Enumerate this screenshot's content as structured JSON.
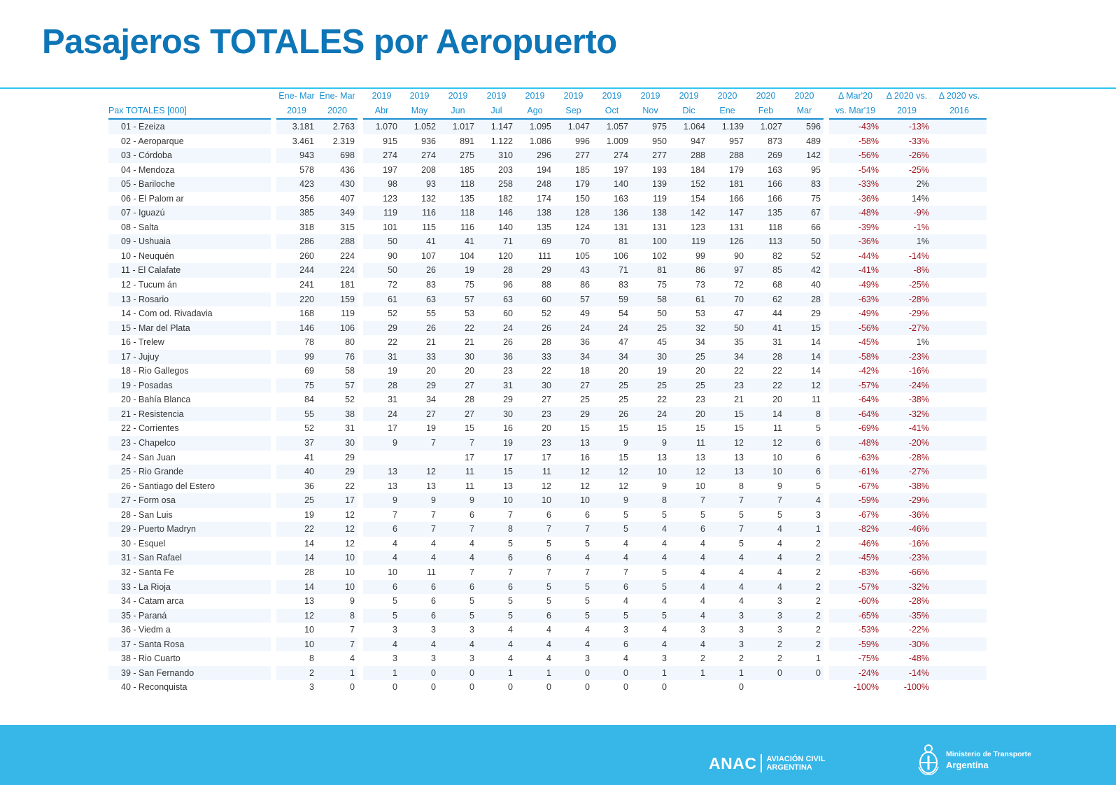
{
  "title": "Pasajeros TOTALES por Aeropuerto",
  "table": {
    "label_header": "Pax TOTALES [000]",
    "col_top": [
      "Ene- Mar",
      "Ene- Mar",
      "2019",
      "2019",
      "2019",
      "2019",
      "2019",
      "2019",
      "2019",
      "2019",
      "2019",
      "2020",
      "2020",
      "2020",
      "Δ Mar'20",
      "Δ 2020 vs.",
      "Δ 2020 vs."
    ],
    "col_bottom": [
      "2019",
      "2020",
      "Abr",
      "May",
      "Jun",
      "Jul",
      "Ago",
      "Sep",
      "Oct",
      "Nov",
      "Dic",
      "Ene",
      "Feb",
      "Mar",
      "vs. Mar'19",
      "2019",
      "2016"
    ],
    "rows": [
      [
        "01 - Ezeiza",
        "3.181",
        "2.763",
        "1.070",
        "1.052",
        "1.017",
        "1.147",
        "1.095",
        "1.047",
        "1.057",
        "975",
        "1.064",
        "1.139",
        "1.027",
        "596",
        "-43%",
        "-13%",
        ""
      ],
      [
        "02 - Aeroparque",
        "3.461",
        "2.319",
        "915",
        "936",
        "891",
        "1.122",
        "1.086",
        "996",
        "1.009",
        "950",
        "947",
        "957",
        "873",
        "489",
        "-58%",
        "-33%",
        ""
      ],
      [
        "03 - Córdoba",
        "943",
        "698",
        "274",
        "274",
        "275",
        "310",
        "296",
        "277",
        "274",
        "277",
        "288",
        "288",
        "269",
        "142",
        "-56%",
        "-26%",
        ""
      ],
      [
        "04 - Mendoza",
        "578",
        "436",
        "197",
        "208",
        "185",
        "203",
        "194",
        "185",
        "197",
        "193",
        "184",
        "179",
        "163",
        "95",
        "-54%",
        "-25%",
        ""
      ],
      [
        "05 - Bariloche",
        "423",
        "430",
        "98",
        "93",
        "118",
        "258",
        "248",
        "179",
        "140",
        "139",
        "152",
        "181",
        "166",
        "83",
        "-33%",
        "2%",
        ""
      ],
      [
        "06 - El Palom ar",
        "356",
        "407",
        "123",
        "132",
        "135",
        "182",
        "174",
        "150",
        "163",
        "119",
        "154",
        "166",
        "166",
        "75",
        "-36%",
        "14%",
        ""
      ],
      [
        "07 - Iguazú",
        "385",
        "349",
        "119",
        "116",
        "118",
        "146",
        "138",
        "128",
        "136",
        "138",
        "142",
        "147",
        "135",
        "67",
        "-48%",
        "-9%",
        ""
      ],
      [
        "08 - Salta",
        "318",
        "315",
        "101",
        "115",
        "116",
        "140",
        "135",
        "124",
        "131",
        "131",
        "123",
        "131",
        "118",
        "66",
        "-39%",
        "-1%",
        ""
      ],
      [
        "09 - Ushuaia",
        "286",
        "288",
        "50",
        "41",
        "41",
        "71",
        "69",
        "70",
        "81",
        "100",
        "119",
        "126",
        "113",
        "50",
        "-36%",
        "1%",
        ""
      ],
      [
        "10 - Neuquén",
        "260",
        "224",
        "90",
        "107",
        "104",
        "120",
        "111",
        "105",
        "106",
        "102",
        "99",
        "90",
        "82",
        "52",
        "-44%",
        "-14%",
        ""
      ],
      [
        "11 - El Calafate",
        "244",
        "224",
        "50",
        "26",
        "19",
        "28",
        "29",
        "43",
        "71",
        "81",
        "86",
        "97",
        "85",
        "42",
        "-41%",
        "-8%",
        ""
      ],
      [
        "12 - Tucum án",
        "241",
        "181",
        "72",
        "83",
        "75",
        "96",
        "88",
        "86",
        "83",
        "75",
        "73",
        "72",
        "68",
        "40",
        "-49%",
        "-25%",
        ""
      ],
      [
        "13 - Rosario",
        "220",
        "159",
        "61",
        "63",
        "57",
        "63",
        "60",
        "57",
        "59",
        "58",
        "61",
        "70",
        "62",
        "28",
        "-63%",
        "-28%",
        ""
      ],
      [
        "14 - Com od. Rivadavia",
        "168",
        "119",
        "52",
        "55",
        "53",
        "60",
        "52",
        "49",
        "54",
        "50",
        "53",
        "47",
        "44",
        "29",
        "-49%",
        "-29%",
        ""
      ],
      [
        "15 - Mar del Plata",
        "146",
        "106",
        "29",
        "26",
        "22",
        "24",
        "26",
        "24",
        "24",
        "25",
        "32",
        "50",
        "41",
        "15",
        "-56%",
        "-27%",
        ""
      ],
      [
        "16 - Trelew",
        "78",
        "80",
        "22",
        "21",
        "21",
        "26",
        "28",
        "36",
        "47",
        "45",
        "34",
        "35",
        "31",
        "14",
        "-45%",
        "1%",
        ""
      ],
      [
        "17 - Jujuy",
        "99",
        "76",
        "31",
        "33",
        "30",
        "36",
        "33",
        "34",
        "34",
        "30",
        "25",
        "34",
        "28",
        "14",
        "-58%",
        "-23%",
        ""
      ],
      [
        "18 - Rio Gallegos",
        "69",
        "58",
        "19",
        "20",
        "20",
        "23",
        "22",
        "18",
        "20",
        "19",
        "20",
        "22",
        "22",
        "14",
        "-42%",
        "-16%",
        ""
      ],
      [
        "19 - Posadas",
        "75",
        "57",
        "28",
        "29",
        "27",
        "31",
        "30",
        "27",
        "25",
        "25",
        "25",
        "23",
        "22",
        "12",
        "-57%",
        "-24%",
        ""
      ],
      [
        "20 - Bahía Blanca",
        "84",
        "52",
        "31",
        "34",
        "28",
        "29",
        "27",
        "25",
        "25",
        "22",
        "23",
        "21",
        "20",
        "11",
        "-64%",
        "-38%",
        ""
      ],
      [
        "21 - Resistencia",
        "55",
        "38",
        "24",
        "27",
        "27",
        "30",
        "23",
        "29",
        "26",
        "24",
        "20",
        "15",
        "14",
        "8",
        "-64%",
        "-32%",
        ""
      ],
      [
        "22 - Corrientes",
        "52",
        "31",
        "17",
        "19",
        "15",
        "16",
        "20",
        "15",
        "15",
        "15",
        "15",
        "15",
        "11",
        "5",
        "-69%",
        "-41%",
        ""
      ],
      [
        "23 - Chapelco",
        "37",
        "30",
        "9",
        "7",
        "7",
        "19",
        "23",
        "13",
        "9",
        "9",
        "11",
        "12",
        "12",
        "6",
        "-48%",
        "-20%",
        ""
      ],
      [
        "24 - San Juan",
        "41",
        "29",
        "",
        "",
        "17",
        "17",
        "17",
        "16",
        "15",
        "13",
        "13",
        "13",
        "10",
        "6",
        "-63%",
        "-28%",
        ""
      ],
      [
        "25 - Rio Grande",
        "40",
        "29",
        "13",
        "12",
        "11",
        "15",
        "11",
        "12",
        "12",
        "10",
        "12",
        "13",
        "10",
        "6",
        "-61%",
        "-27%",
        ""
      ],
      [
        "26 - Santiago del Estero",
        "36",
        "22",
        "13",
        "13",
        "11",
        "13",
        "12",
        "12",
        "12",
        "9",
        "10",
        "8",
        "9",
        "5",
        "-67%",
        "-38%",
        ""
      ],
      [
        "27 - Form osa",
        "25",
        "17",
        "9",
        "9",
        "9",
        "10",
        "10",
        "10",
        "9",
        "8",
        "7",
        "7",
        "7",
        "4",
        "-59%",
        "-29%",
        ""
      ],
      [
        "28 - San Luis",
        "19",
        "12",
        "7",
        "7",
        "6",
        "7",
        "6",
        "6",
        "5",
        "5",
        "5",
        "5",
        "5",
        "3",
        "-67%",
        "-36%",
        ""
      ],
      [
        "29 - Puerto Madryn",
        "22",
        "12",
        "6",
        "7",
        "7",
        "8",
        "7",
        "7",
        "5",
        "4",
        "6",
        "7",
        "4",
        "1",
        "-82%",
        "-46%",
        ""
      ],
      [
        "30 - Esquel",
        "14",
        "12",
        "4",
        "4",
        "4",
        "5",
        "5",
        "5",
        "4",
        "4",
        "4",
        "5",
        "4",
        "2",
        "-46%",
        "-16%",
        ""
      ],
      [
        "31 - San Rafael",
        "14",
        "10",
        "4",
        "4",
        "4",
        "6",
        "6",
        "4",
        "4",
        "4",
        "4",
        "4",
        "4",
        "2",
        "-45%",
        "-23%",
        ""
      ],
      [
        "32 - Santa Fe",
        "28",
        "10",
        "10",
        "11",
        "7",
        "7",
        "7",
        "7",
        "7",
        "5",
        "4",
        "4",
        "4",
        "2",
        "-83%",
        "-66%",
        ""
      ],
      [
        "33 - La Rioja",
        "14",
        "10",
        "6",
        "6",
        "6",
        "6",
        "5",
        "5",
        "6",
        "5",
        "4",
        "4",
        "4",
        "2",
        "-57%",
        "-32%",
        ""
      ],
      [
        "34 - Catam arca",
        "13",
        "9",
        "5",
        "6",
        "5",
        "5",
        "5",
        "5",
        "4",
        "4",
        "4",
        "4",
        "3",
        "2",
        "-60%",
        "-28%",
        ""
      ],
      [
        "35 - Paraná",
        "12",
        "8",
        "5",
        "6",
        "5",
        "5",
        "6",
        "5",
        "5",
        "5",
        "4",
        "3",
        "3",
        "2",
        "-65%",
        "-35%",
        ""
      ],
      [
        "36 - Viedm a",
        "10",
        "7",
        "3",
        "3",
        "3",
        "4",
        "4",
        "4",
        "3",
        "4",
        "3",
        "3",
        "3",
        "2",
        "-53%",
        "-22%",
        ""
      ],
      [
        "37 - Santa Rosa",
        "10",
        "7",
        "4",
        "4",
        "4",
        "4",
        "4",
        "4",
        "6",
        "4",
        "4",
        "3",
        "2",
        "2",
        "-59%",
        "-30%",
        ""
      ],
      [
        "38 - Rio Cuarto",
        "8",
        "4",
        "3",
        "3",
        "3",
        "4",
        "4",
        "3",
        "4",
        "3",
        "2",
        "2",
        "2",
        "1",
        "-75%",
        "-48%",
        ""
      ],
      [
        "39 - San Fernando",
        "2",
        "1",
        "1",
        "0",
        "0",
        "1",
        "1",
        "0",
        "0",
        "1",
        "1",
        "1",
        "0",
        "0",
        "-24%",
        "-14%",
        ""
      ],
      [
        "40 - Reconquista",
        "3",
        "0",
        "0",
        "0",
        "0",
        "0",
        "0",
        "0",
        "0",
        "0",
        "",
        "0",
        "",
        "",
        "-100%",
        "-100%",
        ""
      ]
    ]
  },
  "footer": {
    "anac_big": "ANAC",
    "anac_small_1": "AVIACIÓN CIVIL",
    "anac_small_2": "ARGENTINA",
    "ministry_1": "Ministerio de Transporte",
    "ministry_2": "Argentina"
  },
  "colors": {
    "title": "#0e75b6",
    "header": "#1a8fd0",
    "negative": "#a0161f",
    "footer": "#37b6e8",
    "rule": "#2ec5ee"
  }
}
